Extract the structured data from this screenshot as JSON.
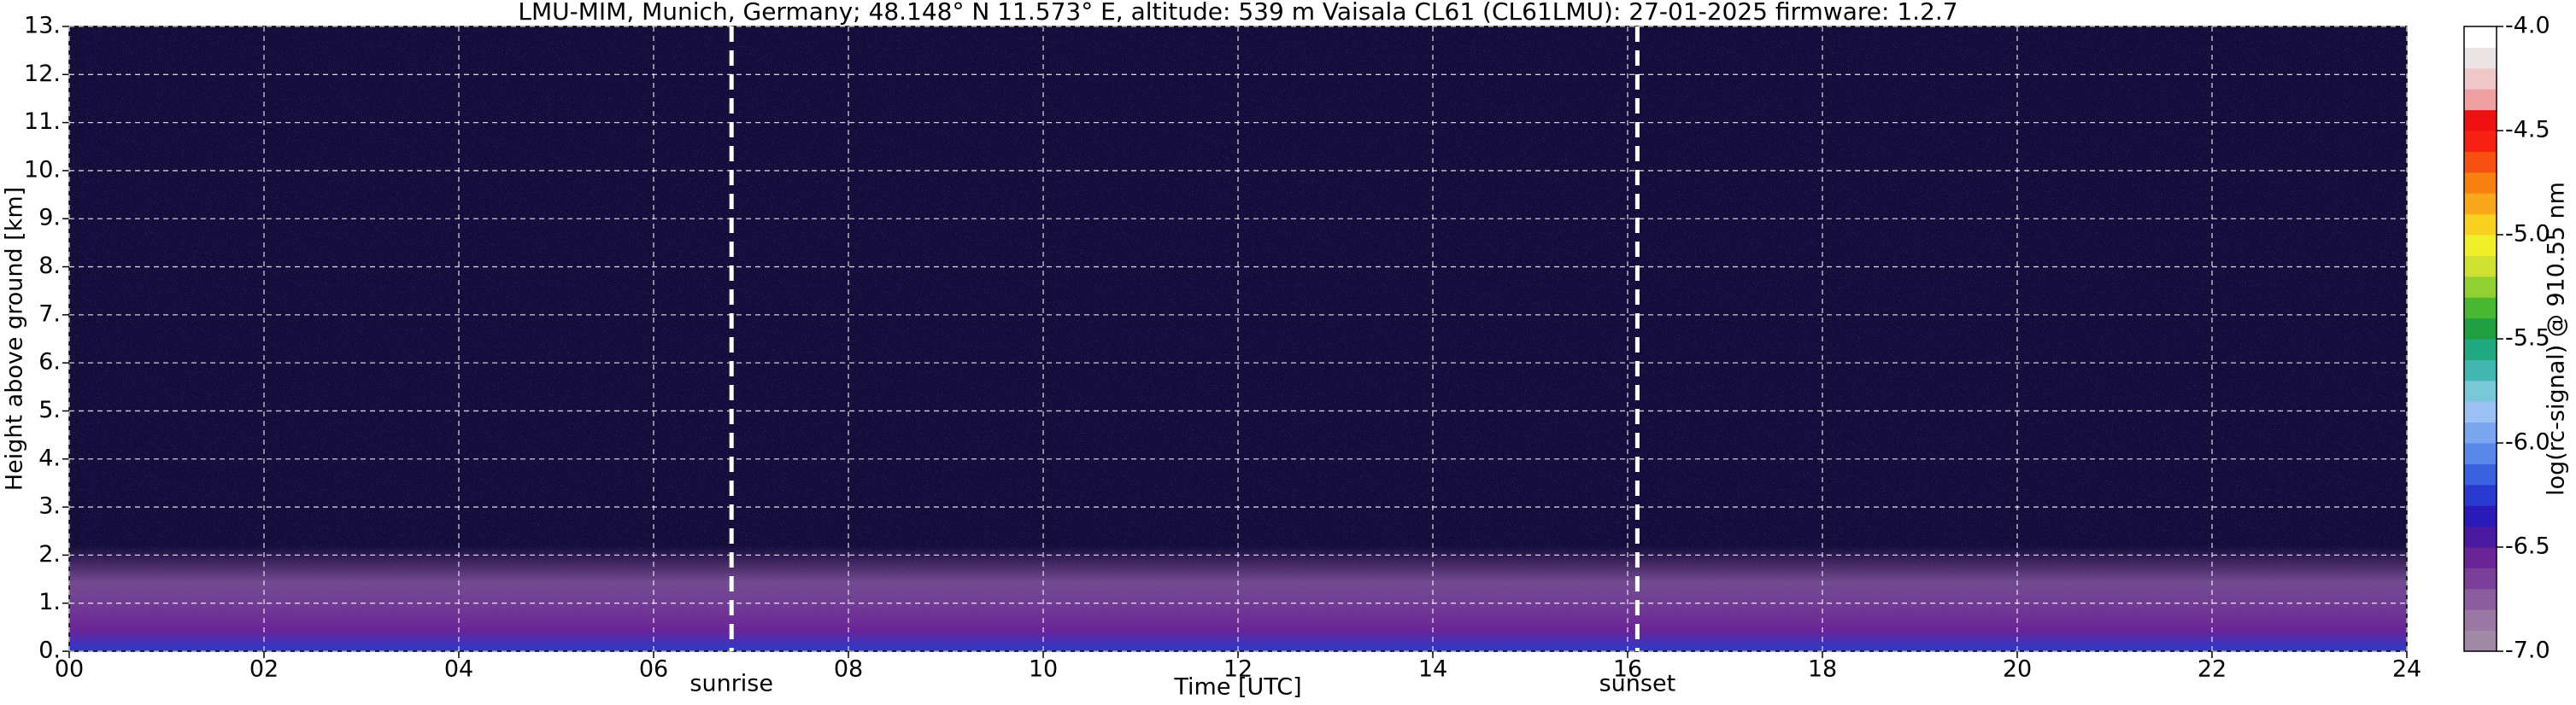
{
  "chart_data": {
    "type": "heatmap",
    "title": "LMU-MIM, Munich, Germany; 48.148° N 11.573° E, altitude: 539 m    Vaisala CL61 (CL61LMU): 27-01-2025    firmware: 1.2.7",
    "x_label": "Time [UTC]",
    "y_label": "Height above ground [km]",
    "xlim": [
      0,
      24
    ],
    "xticks": [
      {
        "value": 0,
        "label": "00"
      },
      {
        "value": 2,
        "label": "02"
      },
      {
        "value": 4,
        "label": "04"
      },
      {
        "value": 6,
        "label": "06"
      },
      {
        "value": 8,
        "label": "08"
      },
      10,
      12,
      14,
      16,
      18,
      20,
      22,
      24
    ],
    "ylim": [
      0,
      13
    ],
    "yticks": [
      {
        "value": 0,
        "label": "0."
      },
      {
        "value": 1,
        "label": "1."
      },
      {
        "value": 2,
        "label": "2."
      },
      {
        "value": 3,
        "label": "3."
      },
      {
        "value": 4,
        "label": "4."
      },
      {
        "value": 5,
        "label": "5."
      },
      {
        "value": 6,
        "label": "6."
      },
      {
        "value": 7,
        "label": "7."
      },
      {
        "value": 8,
        "label": "8."
      },
      {
        "value": 9,
        "label": "9."
      },
      {
        "value": 10,
        "label": "10."
      },
      {
        "value": 11,
        "label": "11."
      },
      {
        "value": 12,
        "label": "12."
      },
      {
        "value": 13,
        "label": "13."
      }
    ],
    "grid": true,
    "annotations": [
      {
        "text": "sunrise",
        "x": 6.8
      },
      {
        "text": "sunset",
        "x": 16.1
      }
    ],
    "colorbar": {
      "label": "log(rc-signal) @ 910.55 nm",
      "lim": [
        -7,
        -4
      ],
      "ticks": [
        {
          "value": -7,
          "label": "-7.0"
        },
        {
          "value": -6.5,
          "label": "-6.5"
        },
        {
          "value": -6,
          "label": "-6.0"
        },
        {
          "value": -5.5,
          "label": "-5.5"
        },
        {
          "value": -5,
          "label": "-5.0"
        },
        {
          "value": -4.5,
          "label": "-4.5"
        },
        {
          "value": -4,
          "label": "-4.0"
        }
      ],
      "colors": [
        "#a08aa6",
        "#9a78a4",
        "#8a5e9e",
        "#7a3f98",
        "#6a2496",
        "#4a1aa0",
        "#2a1ab8",
        "#2a3ad0",
        "#3a62e0",
        "#5a88ea",
        "#7aa6f0",
        "#9ac0f4",
        "#78c8d8",
        "#40b8b0",
        "#20a880",
        "#20a040",
        "#48b830",
        "#90d030",
        "#d0e030",
        "#f0f028",
        "#f8d020",
        "#f8a818",
        "#f88010",
        "#f85010",
        "#f82010",
        "#f01010",
        "#f0a0a0",
        "#f0c8c8",
        "#ece4e4",
        "#ffffff"
      ]
    }
  }
}
